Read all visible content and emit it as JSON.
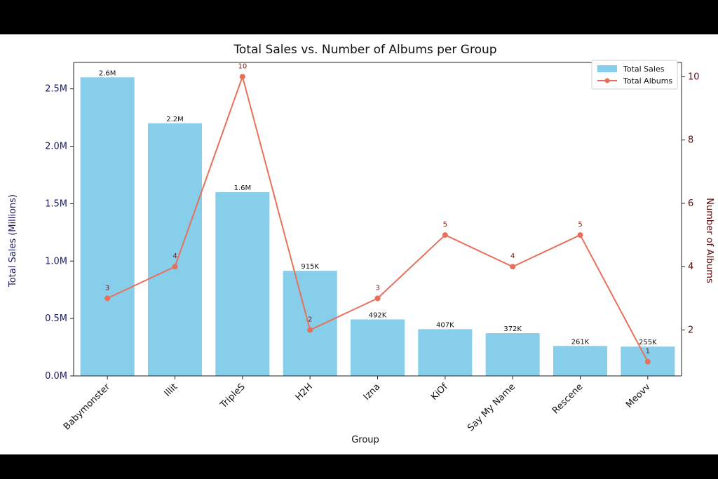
{
  "chart_data": {
    "type": "bar+line",
    "title": "Total Sales vs. Number of Albums per Group",
    "xlabel": "Group",
    "ylabel_left": "Total Sales (Millions)",
    "ylabel_right": "Number of Albums",
    "categories": [
      "Babymonster",
      "Illit",
      "TripleS",
      "H2H",
      "Izna",
      "KiOf",
      "Say My Name",
      "Rescene",
      "Meovv"
    ],
    "series": [
      {
        "name": "Total Sales",
        "type": "bar",
        "axis": "left",
        "color": "#87CEEB",
        "values": [
          2600000,
          2200000,
          1600000,
          915000,
          492000,
          407000,
          372000,
          261000,
          255000
        ],
        "labels": [
          "2.6M",
          "2.2M",
          "1.6M",
          "915K",
          "492K",
          "407K",
          "372K",
          "261K",
          "255K"
        ]
      },
      {
        "name": "Total Albums",
        "type": "line",
        "axis": "right",
        "color": "#E8705A",
        "values": [
          3,
          4,
          10,
          2,
          3,
          5,
          4,
          5,
          1
        ],
        "labels": [
          "3",
          "4",
          "10",
          "2",
          "3",
          "5",
          "4",
          "5",
          "1"
        ]
      }
    ],
    "ylim_left": [
      0,
      2730000
    ],
    "yticks_left": [
      0,
      500000,
      1000000,
      1500000,
      2000000,
      2500000
    ],
    "ytick_labels_left": [
      "0.0M",
      "0.5M",
      "1.0M",
      "1.5M",
      "2.0M",
      "2.5M"
    ],
    "ylim_right": [
      0.55,
      10.45
    ],
    "yticks_right": [
      2,
      4,
      6,
      8,
      10
    ],
    "ytick_labels_right": [
      "2",
      "4",
      "6",
      "8",
      "10"
    ],
    "grid": false,
    "legend": "top-right"
  }
}
